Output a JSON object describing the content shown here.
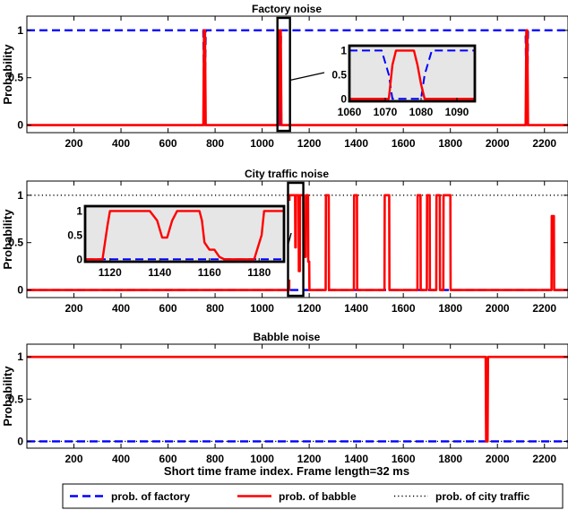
{
  "chart_data": [
    {
      "type": "line",
      "title": "Factory noise",
      "ylabel": "Probability",
      "xlabel": "",
      "xlim": [
        0,
        2300
      ],
      "ylim": [
        -0.08,
        1.15
      ],
      "xticks": [
        200,
        400,
        600,
        800,
        1000,
        1200,
        1400,
        1600,
        1800,
        2000,
        2200
      ],
      "yticks": [
        0,
        0.5,
        1
      ],
      "grid": false,
      "series": [
        {
          "name": "prob. of factory",
          "color": "#0000ff",
          "style": "dashed",
          "x": [
            0,
            750,
            755,
            760,
            1070,
            1075,
            1080,
            2120,
            2125,
            2130,
            2300
          ],
          "y": [
            1,
            1,
            0,
            1,
            1,
            0,
            1,
            1,
            0,
            1,
            1
          ]
        },
        {
          "name": "prob. of babble",
          "color": "#ff0000",
          "style": "solid",
          "x": [
            0,
            750,
            753,
            757,
            760,
            1070,
            1073,
            1079,
            1082,
            2120,
            2123,
            2127,
            2130,
            2300
          ],
          "y": [
            0,
            0,
            1,
            1,
            0,
            0,
            1,
            1,
            0,
            0,
            1,
            1,
            0,
            0
          ]
        },
        {
          "name": "prob. of city traffic",
          "color": "#000000",
          "style": "dotted",
          "x": [
            0,
            2300
          ],
          "y": [
            0,
            0
          ]
        }
      ],
      "inset": {
        "xlim": [
          1060,
          1095
        ],
        "ylim": [
          -0.05,
          1.1
        ],
        "xticks": [
          1060,
          1070,
          1080,
          1090
        ],
        "yticks": [
          0,
          0.5,
          1
        ],
        "zoom_xrange": [
          1065,
          1085
        ],
        "series": [
          {
            "name": "prob. of factory",
            "x": [
              1060,
              1069,
              1071,
              1072,
              1080,
              1081,
              1083,
              1095
            ],
            "y": [
              1,
              1,
              0.5,
              0,
              0,
              0.5,
              1,
              1
            ]
          },
          {
            "name": "prob. of babble",
            "x": [
              1060,
              1071,
              1072,
              1073,
              1078,
              1079,
              1080,
              1081,
              1095
            ],
            "y": [
              0,
              0,
              0.7,
              1,
              1,
              0.7,
              0.3,
              0,
              0
            ]
          }
        ]
      }
    },
    {
      "type": "line",
      "title": "City traffic noise",
      "ylabel": "Probability",
      "xlabel": "",
      "xlim": [
        0,
        2300
      ],
      "ylim": [
        -0.08,
        1.15
      ],
      "xticks": [
        200,
        400,
        600,
        800,
        1000,
        1200,
        1400,
        1600,
        1800,
        2000,
        2200
      ],
      "yticks": [
        0,
        0.5,
        1
      ],
      "grid": false,
      "series": [
        {
          "name": "prob. of factory",
          "color": "#0000ff",
          "style": "dashed",
          "x": [
            0,
            2300
          ],
          "y": [
            0,
            0
          ]
        },
        {
          "name": "prob. of babble",
          "color": "#ff0000",
          "style": "solid",
          "x": [
            0,
            1115,
            1116,
            1140,
            1141,
            1143,
            1144,
            1155,
            1156,
            1160,
            1161,
            1175,
            1176,
            1185,
            1186,
            1195,
            1196,
            1200,
            1201,
            1270,
            1271,
            1283,
            1284,
            1390,
            1391,
            1403,
            1404,
            1520,
            1521,
            1540,
            1541,
            1660,
            1661,
            1673,
            1674,
            1700,
            1701,
            1712,
            1713,
            1740,
            1741,
            1755,
            1756,
            1770,
            1771,
            1800,
            1801,
            1815,
            1816,
            2230,
            2231,
            2240,
            2241,
            2300
          ],
          "y": [
            0,
            0,
            1,
            1,
            0.45,
            0.45,
            1,
            1,
            0.2,
            0.2,
            1,
            1,
            0.35,
            0.35,
            1,
            1,
            0.3,
            0.3,
            0,
            0,
            1,
            1,
            0,
            0,
            1,
            1,
            0,
            0,
            1,
            1,
            0,
            0,
            1,
            1,
            0,
            0,
            1,
            1,
            0,
            0,
            1,
            1,
            0,
            0,
            1,
            1,
            0,
            0,
            0,
            0,
            0.78,
            0.78,
            0,
            0
          ]
        },
        {
          "name": "prob. of city traffic",
          "color": "#000000",
          "style": "dotted",
          "x": [
            0,
            2300
          ],
          "y": [
            1,
            1
          ]
        }
      ],
      "inset": {
        "xlim": [
          1110,
          1190
        ],
        "ylim": [
          -0.05,
          1.1
        ],
        "xticks": [
          1120,
          1140,
          1160,
          1180
        ],
        "yticks": [
          0,
          0.5,
          1
        ],
        "zoom_xrange": [
          1110,
          1175
        ],
        "series": [
          {
            "name": "prob. of babble",
            "x": [
              1110,
              1117,
              1119,
              1120,
              1136,
              1139,
              1141,
              1143,
              1145,
              1147,
              1149,
              1156,
              1157,
              1158,
              1160,
              1162,
              1164,
              1166,
              1168,
              1170,
              1178,
              1181,
              1182,
              1190
            ],
            "y": [
              0,
              0,
              0.7,
              1,
              1,
              0.8,
              0.45,
              0.45,
              0.8,
              1,
              1,
              1,
              0.8,
              0.35,
              0.2,
              0.2,
              0.05,
              0,
              0,
              0,
              0.0,
              0.5,
              1,
              1
            ]
          },
          {
            "name": "prob. of factory",
            "x": [
              1110,
              1190
            ],
            "y": [
              0,
              0
            ]
          }
        ]
      }
    },
    {
      "type": "line",
      "title": "Babble noise",
      "ylabel": "Probability",
      "xlabel": "Short time frame index. Frame length=32 ms",
      "xlim": [
        0,
        2300
      ],
      "ylim": [
        -0.08,
        1.15
      ],
      "xticks": [
        200,
        400,
        600,
        800,
        1000,
        1200,
        1400,
        1600,
        1800,
        2000,
        2200
      ],
      "yticks": [
        0,
        0.5,
        1
      ],
      "grid": false,
      "series": [
        {
          "name": "prob. of factory",
          "color": "#0000ff",
          "style": "dashed",
          "x": [
            0,
            2300
          ],
          "y": [
            0,
            0
          ]
        },
        {
          "name": "prob. of babble",
          "color": "#ff0000",
          "style": "solid",
          "x": [
            0,
            1950,
            1952,
            1958,
            1960,
            2300
          ],
          "y": [
            1,
            1,
            0,
            0,
            1,
            1
          ]
        },
        {
          "name": "prob. of city traffic",
          "color": "#000000",
          "style": "dotted",
          "x": [
            0,
            2300
          ],
          "y": [
            0,
            0
          ]
        }
      ]
    }
  ],
  "legend": {
    "placement": "bottom",
    "entries": [
      {
        "label": "prob. of factory",
        "color": "#0000ff",
        "style": "dashed"
      },
      {
        "label": "prob. of babble",
        "color": "#ff0000",
        "style": "solid"
      },
      {
        "label": "prob. of city traffic",
        "color": "#000000",
        "style": "dotted"
      }
    ]
  }
}
